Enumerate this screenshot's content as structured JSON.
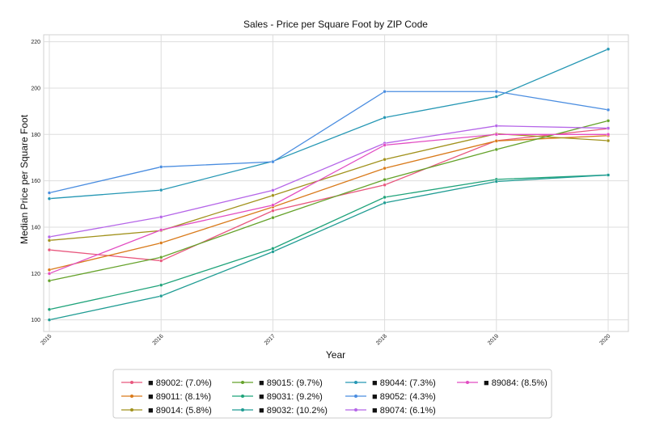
{
  "chart_data": {
    "type": "line",
    "title": "Sales - Price per Square Foot by ZIP Code",
    "xlabel": "Year",
    "ylabel": "Median Price per Square Foot",
    "x": [
      "2015",
      "2016",
      "2017",
      "2018",
      "2019",
      "2020"
    ],
    "xlim": [
      2015,
      2020
    ],
    "ylim": [
      95,
      223
    ],
    "yticks": [
      100,
      120,
      140,
      160,
      180,
      200,
      220
    ],
    "grid": true,
    "legend_position": "bottom-center",
    "series": [
      {
        "name": "■ 89002: (7.0%)",
        "color": "#e8577e",
        "values": [
          130.2,
          125.5,
          147.1,
          158.2,
          177.3,
          182.5
        ]
      },
      {
        "name": "■ 89011: (8.1%)",
        "color": "#d97a1a",
        "values": [
          121.6,
          133.2,
          148.7,
          165.4,
          177.2,
          179.5
        ]
      },
      {
        "name": "■ 89014: (5.8%)",
        "color": "#a1921c",
        "values": [
          134.3,
          138.5,
          153.7,
          169.2,
          180.3,
          177.3
        ]
      },
      {
        "name": "■ 89015: (9.7%)",
        "color": "#65a22a",
        "values": [
          116.9,
          127.0,
          144.1,
          160.5,
          173.5,
          185.9
        ]
      },
      {
        "name": "■ 89031: (9.2%)",
        "color": "#1fa37a",
        "values": [
          104.5,
          115.0,
          130.8,
          152.9,
          160.6,
          162.5
        ]
      },
      {
        "name": "■ 89032: (10.2%)",
        "color": "#1f9c93",
        "values": [
          100.0,
          110.3,
          129.4,
          150.5,
          159.7,
          162.5
        ]
      },
      {
        "name": "■ 89044: (7.3%)",
        "color": "#2597b4",
        "values": [
          152.3,
          156.0,
          168.4,
          187.3,
          196.3,
          216.8
        ]
      },
      {
        "name": "■ 89052: (4.3%)",
        "color": "#4a8de0",
        "values": [
          154.8,
          166.0,
          168.2,
          198.5,
          198.5,
          190.6
        ]
      },
      {
        "name": "■ 89074: (6.1%)",
        "color": "#b565e8",
        "values": [
          135.8,
          144.4,
          155.9,
          176.2,
          183.7,
          182.7
        ]
      },
      {
        "name": "■ 89084: (8.5%)",
        "color": "#e24cc2",
        "values": [
          120.0,
          138.8,
          149.5,
          175.4,
          180.0,
          180.0
        ]
      }
    ]
  }
}
